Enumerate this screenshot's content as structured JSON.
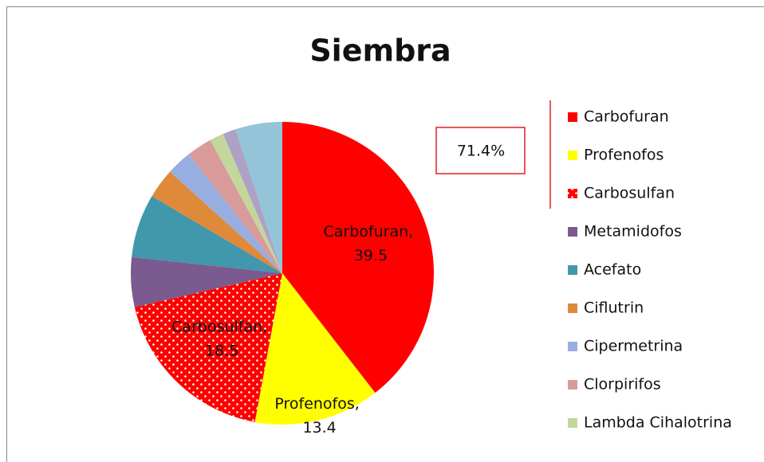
{
  "chart_data": {
    "type": "pie",
    "title": "Siembra",
    "categories": [
      "Carbofuran",
      "Profenofos",
      "Carbosulfan",
      "Metamidofos",
      "Acefato",
      "Ciflutrin",
      "Cipermetrina",
      "Clorpirifos",
      "Lambda Cihalotrina",
      null,
      null
    ],
    "values": [
      39.5,
      13.4,
      18.5,
      5.3,
      6.8,
      3.2,
      2.7,
      2.7,
      1.5,
      1.4,
      5.0
    ],
    "value_labels": [
      "Carbofuran, 39.5",
      "Profenofos, 13.4",
      "Carbosulfan, 18.5",
      null,
      null,
      null,
      null,
      null,
      null,
      null,
      null
    ],
    "colors": [
      "#ff0000",
      "#ffff00",
      "#ff0000",
      "#7b5a8f",
      "#4197ab",
      "#de8a3a",
      "#98aee0",
      "#d99a9a",
      "#c3d69b",
      "#ada2c6",
      "#93c4d8"
    ],
    "patterns": [
      null,
      null,
      "dots",
      null,
      null,
      null,
      null,
      null,
      null,
      null,
      null
    ],
    "annotation": "71.4%",
    "legend": "right"
  }
}
